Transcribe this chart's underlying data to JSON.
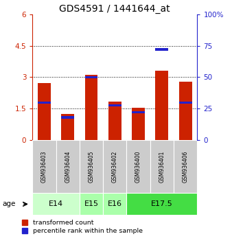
{
  "title": "GDS4591 / 1441644_at",
  "samples": [
    "GSM936403",
    "GSM936404",
    "GSM936405",
    "GSM936402",
    "GSM936400",
    "GSM936401",
    "GSM936406"
  ],
  "transformed_count": [
    2.72,
    1.22,
    3.12,
    1.82,
    1.52,
    3.32,
    2.78
  ],
  "percentile_rank": [
    1.78,
    1.08,
    3.0,
    1.65,
    1.32,
    4.32,
    1.78
  ],
  "age_groups": [
    {
      "label": "E14",
      "samples": [
        0,
        1
      ],
      "color": "#ccffcc"
    },
    {
      "label": "E15",
      "samples": [
        2
      ],
      "color": "#aaffaa"
    },
    {
      "label": "E16",
      "samples": [
        3
      ],
      "color": "#aaffaa"
    },
    {
      "label": "E17.5",
      "samples": [
        4,
        5,
        6
      ],
      "color": "#44dd44"
    }
  ],
  "left_yticks": [
    0,
    1.5,
    3.0,
    4.5,
    6
  ],
  "right_yticks": [
    0,
    25,
    50,
    75,
    100
  ],
  "left_yticklabels": [
    "0",
    "1.5",
    "3",
    "4.5",
    "6"
  ],
  "right_yticklabels": [
    "0",
    "25",
    "50",
    "75",
    "100%"
  ],
  "ylim": [
    0,
    6
  ],
  "right_ylim": [
    0,
    100
  ],
  "bar_color": "#cc2200",
  "percentile_color": "#2222cc",
  "sample_bg_color": "#cccccc",
  "bar_width": 0.55,
  "title_fontsize": 10
}
